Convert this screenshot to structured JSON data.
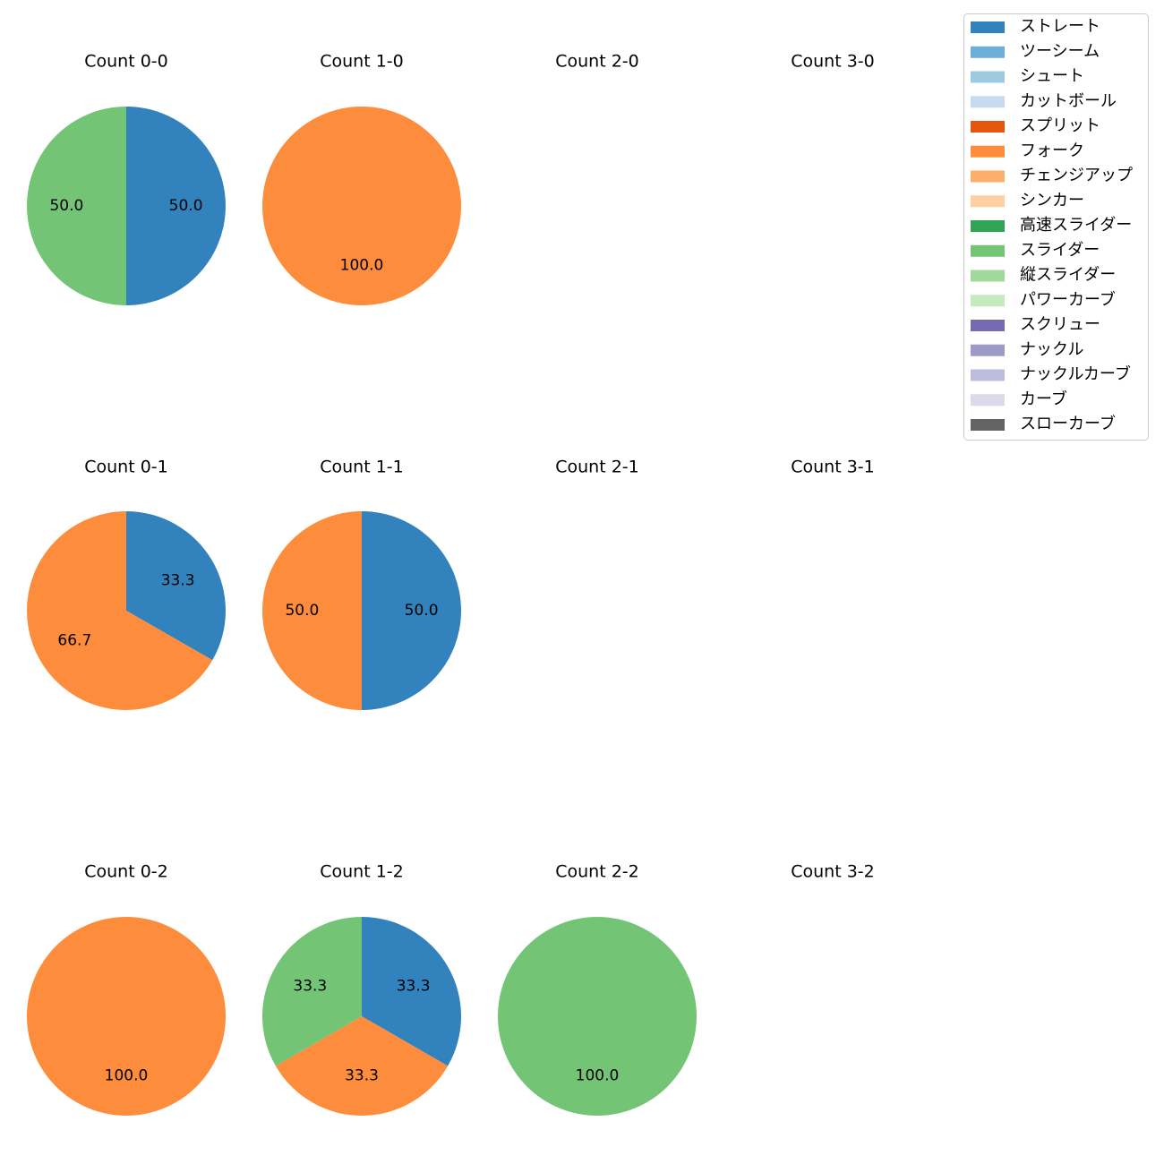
{
  "chart_data": {
    "type": "pie",
    "series_legend": [
      {
        "name": "ストレート",
        "color": "#3182bd"
      },
      {
        "name": "ツーシーム",
        "color": "#6baed6"
      },
      {
        "name": "シュート",
        "color": "#9ecae1"
      },
      {
        "name": "カットボール",
        "color": "#c6dbef"
      },
      {
        "name": "スプリット",
        "color": "#e6550d"
      },
      {
        "name": "フォーク",
        "color": "#fd8d3c"
      },
      {
        "name": "チェンジアップ",
        "color": "#fdae6b"
      },
      {
        "name": "シンカー",
        "color": "#fdd0a2"
      },
      {
        "name": "高速スライダー",
        "color": "#31a354"
      },
      {
        "name": "スライダー",
        "color": "#74c476"
      },
      {
        "name": "縦スライダー",
        "color": "#a1d99b"
      },
      {
        "name": "パワーカーブ",
        "color": "#c7e9c0"
      },
      {
        "name": "スクリュー",
        "color": "#756bb1"
      },
      {
        "name": "ナックル",
        "color": "#9e9ac8"
      },
      {
        "name": "ナックルカーブ",
        "color": "#bcbddc"
      },
      {
        "name": "カーブ",
        "color": "#dadaeb"
      },
      {
        "name": "スローカーブ",
        "color": "#636363"
      }
    ],
    "legend_placement": "top-right",
    "charts": [
      {
        "title": "Count 0-0",
        "slices": [
          {
            "type": "ストレート",
            "value": 50.0
          },
          {
            "type": "スライダー",
            "value": 50.0
          }
        ]
      },
      {
        "title": "Count 1-0",
        "slices": [
          {
            "type": "フォーク",
            "value": 100.0
          }
        ]
      },
      {
        "title": "Count 2-0",
        "slices": []
      },
      {
        "title": "Count 3-0",
        "slices": []
      },
      {
        "title": "Count 0-1",
        "slices": [
          {
            "type": "ストレート",
            "value": 33.3
          },
          {
            "type": "フォーク",
            "value": 66.7
          }
        ]
      },
      {
        "title": "Count 1-1",
        "slices": [
          {
            "type": "ストレート",
            "value": 50.0
          },
          {
            "type": "フォーク",
            "value": 50.0
          }
        ]
      },
      {
        "title": "Count 2-1",
        "slices": []
      },
      {
        "title": "Count 3-1",
        "slices": []
      },
      {
        "title": "Count 0-2",
        "slices": [
          {
            "type": "フォーク",
            "value": 100.0
          }
        ]
      },
      {
        "title": "Count 1-2",
        "slices": [
          {
            "type": "ストレート",
            "value": 33.3
          },
          {
            "type": "フォーク",
            "value": 33.3
          },
          {
            "type": "スライダー",
            "value": 33.3
          }
        ]
      },
      {
        "title": "Count 2-2",
        "slices": [
          {
            "type": "スライダー",
            "value": 100.0
          }
        ]
      },
      {
        "title": "Count 3-2",
        "slices": []
      }
    ]
  }
}
